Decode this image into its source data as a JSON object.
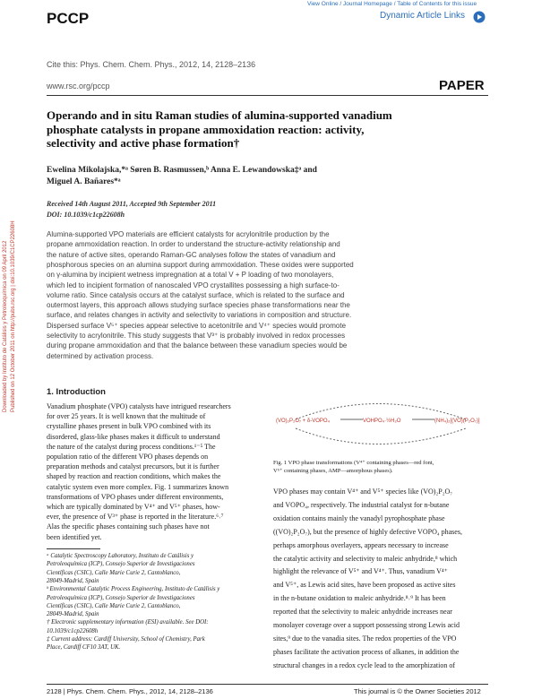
{
  "header": {
    "journal": "PCCP",
    "links": "View Online / Journal Homepage / Table of Contents for this issue",
    "dynamic": "Dynamic Article Links",
    "cite": "Cite this: Phys. Chem. Chem. Phys., 2012, 14, 2128–2136",
    "url": "www.rsc.org/pccp",
    "article_type": "PAPER"
  },
  "sidebar": [
    "Downloaded by Instituto de Catálisis y Petroleoquímica on 09 April 2012",
    "Published on 12 October 2011 on http://pubs.rsc.org | doi:10.1039/C1CP22608H"
  ],
  "title": [
    "Operando and in situ Raman studies of alumina-supported vanadium",
    "phosphate catalysts in propane ammoxidation reaction: activity,",
    "selectivity and active phase formation†"
  ],
  "authors": [
    "Ewelina Mikolajska,*ᵃ Søren B. Rasmussen,ᵇ Anna E. Lewandowska‡ᵃ and",
    "Miguel A. Bañares*ᵃ"
  ],
  "dates": [
    "Received 14th August 2011, Accepted 9th September 2011",
    "DOI: 10.1039/c1cp22608h"
  ],
  "abstract": [
    "Alumina-supported VPO materials are efficient catalysts for acrylonitrile production by the",
    "propane ammoxidation reaction. In order to understand the structure-activity relationship and",
    "the nature of active sites, operando Raman-GC analyses follow the states of vanadium and",
    "phosphorous species on an alumina support during ammoxidation. These oxides were supported",
    "on γ-alumina by incipient wetness impregnation at a total V + P loading of two monolayers,",
    "which led to incipient formation of nanoscaled VPO crystallites possessing a high surface-to-",
    "volume ratio. Since catalysis occurs at the catalyst surface, which is related to the surface and",
    "outermost layers, this approach allows studying surface species phase transformations near the",
    "surface, and relates changes in activity and selectivity to variations in composition and structure.",
    "Dispersed surface V⁵⁺ species appear selective to acetonitrile and V⁴⁺ species would promote",
    "selectivity to acrylonitrile. This study suggests that V³⁺ is probably involved in redox processes",
    "during propane ammoxidation and that the balance between these vanadium species would be",
    "determined by activation process."
  ],
  "section": "1.   Introduction",
  "intro": [
    "Vanadium phosphate (VPO) catalysts have intrigued researchers",
    "for over 25 years. It is well known that the multitude of",
    "crystalline phases present in bulk VPO combined with its",
    "disordered, glass-like phases makes it difficult to understand",
    "the nature of the catalyst during process conditions.¹⁻⁵ The",
    "population ratio of the different VPO phases depends on",
    "preparation methods and catalyst precursors, but it is further",
    "shaped by reaction and reaction conditions, which makes the",
    "catalytic system even more complex. Fig. 1 summarizes known",
    "transformations of VPO phases under different environments,",
    "which are typically dominated by V⁴⁺ and V⁵⁺ phases, how-",
    "ever, the presence of V³⁺ phase is reported in the literature.⁶˒⁷",
    "    Alas the specific phases containing such phases have not",
    "been identified yet."
  ],
  "footnotes": [
    "ᵃ Catalytic Spectroscopy Laboratory, Instituto de Catálisis y",
    "   Petroleoquímica (ICP), Consejo Superior de Investigaciones",
    "   Científicas (CSIC), Calle Marie Curie 2, Cantoblanco,",
    "   28049-Madrid, Spain",
    "ᵇ Environmental Catalytic Process Engineering, Instituto de Catálisis y",
    "   Petroleoquímica (ICP), Consejo Superior de Investigaciones",
    "   Científicas (CSIC), Calle Marie Curie 2, Cantoblanco,",
    "   28049-Madrid, Spain",
    "† Electronic supplementary information (ESI) available. See DOI:",
    "   10.1039/c1cp22608h",
    "‡ Current address: Cardiff University, School of Chemistry, Park",
    "   Place, Cardiff CF10 3AT, UK."
  ],
  "figure": {
    "labels": [
      "(VO)₂P₂O₇ + δ-VOPO₄",
      "VOHPO₄·½H₂O",
      "(NH₄)₂[(VO)(P₂O₇)]"
    ],
    "caption": [
      "Fig. 1   VPO phase transformations (V⁴⁺ containing phases—red font,",
      "V⁵⁺ containing phases, AMP—amorphous phases)."
    ]
  },
  "right": [
    "VPO phases may contain V⁴⁺ and V⁵⁺ species like (VO)₂P₂O₇",
    "and VOPO₄, respectively. The industrial catalyst for n-butane",
    "oxidation contains mainly the vanadyl pyrophosphate phase",
    "((VO)₂P₂O₇), but the presence of highly defective VOPO₄ phases,",
    "perhaps amorphous overlayers, appears necessary to increase",
    "the catalytic activity and selectivity to maleic anhydride,⁸ which",
    "highlight the relevance of V⁵⁺ and V⁴⁺. Thus, vanadium V⁴⁺",
    "and V⁵⁺, as Lewis acid sites, have been proposed as active sites",
    "in the n-butane oxidation to maleic anhydride.⁸˒⁹ It has been",
    "reported that the selectivity to maleic anhydride increases near",
    "monolayer coverage over a support possessing strong Lewis acid",
    "sites,⁹ due to the vanadia sites. The redox properties of the VPO",
    "phases facilitate the activation process of alkanes, in addition the",
    "structural changes in a redox cycle lead to the amorphization of"
  ],
  "footer": {
    "left": "2128 | Phys. Chem. Chem. Phys., 2012, 14, 2128–2136",
    "right": "This journal is © the Owner Societies 2012"
  }
}
